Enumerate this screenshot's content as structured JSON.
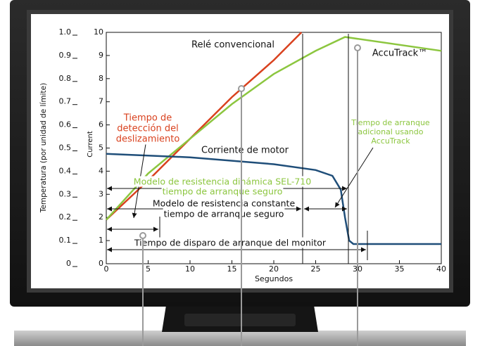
{
  "chart_data": {
    "type": "line",
    "xlabel": "Segundos",
    "ylabel": "Current",
    "y2label": "Temperatura (por unidad de límite)",
    "xlim": [
      0,
      40
    ],
    "xticks": [
      0,
      5,
      10,
      15,
      20,
      25,
      30,
      35,
      40
    ],
    "ylim": [
      0,
      10
    ],
    "yticks": [
      0,
      1,
      2,
      3,
      4,
      5,
      6,
      7,
      8,
      9,
      10
    ],
    "y2lim": [
      0,
      1
    ],
    "y2ticks": [
      0,
      0.1,
      0.2,
      0.3,
      0.4,
      0.5,
      0.6,
      0.7,
      0.8,
      0.9,
      {
        "value": 1,
        "label": "1.0"
      }
    ],
    "series": [
      {
        "name": "Relé convencional",
        "color": "#d9411e",
        "x": [
          0,
          5,
          10,
          15,
          20,
          23.3
        ],
        "values": [
          1.9,
          3.6,
          5.4,
          7.2,
          8.8,
          10
        ]
      },
      {
        "name": "AccuTrack™",
        "color": "#8cc63f",
        "x": [
          0,
          5,
          10,
          15,
          20,
          25,
          28.5,
          40
        ],
        "values": [
          1.9,
          3.9,
          5.4,
          6.9,
          8.2,
          9.2,
          9.8,
          9.2
        ]
      },
      {
        "name": "Corriente de motor",
        "color": "#1f4e79",
        "x": [
          0,
          10,
          20,
          25,
          27,
          28,
          28.5,
          29,
          29.5,
          40
        ],
        "values": [
          4.75,
          4.6,
          4.3,
          4.05,
          3.8,
          3.2,
          2.0,
          1.0,
          0.85,
          0.85
        ]
      }
    ],
    "annotations": [
      {
        "lines": [
          "Tiempo de",
          "detección del",
          "deslizamiento"
        ],
        "color": "#d9411e"
      },
      {
        "lines": [
          "Modelo de resistencia dinámica SEL-710",
          "tiempo de arranque seguro"
        ],
        "color": "#8cc63f"
      },
      {
        "lines": [
          "Modelo de resistencia constante",
          "tiempo de arranque seguro"
        ],
        "color": "#111111"
      },
      {
        "lines": [
          "Tiempo de disparo de arranque del monitor"
        ],
        "color": "#111111"
      },
      {
        "lines": [
          "Tiempo de arranque",
          "adicional usando",
          "AccuTrack"
        ],
        "color": "#8cc63f"
      }
    ]
  }
}
